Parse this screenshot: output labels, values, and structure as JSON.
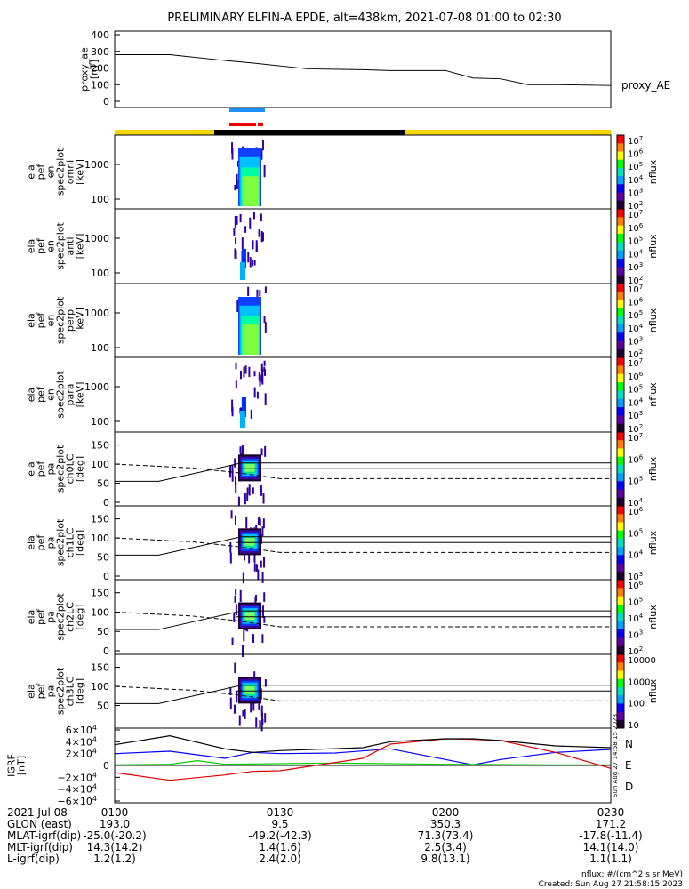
{
  "title": "PRELIMINARY ELFIN-A EPDE, alt=438km, 2021-07-08 01:00 to 02:30",
  "chart_data": [
    {
      "type": "line",
      "ylabel": [
        "proxy_ae",
        "[nT]"
      ],
      "yticks": [
        "400",
        "300",
        "200",
        "100",
        "0"
      ],
      "ylim": [
        0,
        400
      ],
      "series": [
        {
          "name": "proxy_AE",
          "x_min": [
            0,
            10,
            20,
            25,
            35,
            45,
            50,
            60,
            65,
            70,
            75,
            80,
            90
          ],
          "values": [
            280,
            280,
            245,
            230,
            195,
            190,
            185,
            185,
            140,
            135,
            100,
            100,
            95
          ]
        }
      ]
    },
    {
      "type": "heatmap",
      "ylabel": [
        "ela",
        "pef",
        "en",
        "spec2plot",
        "omni",
        "[keV]"
      ],
      "yticks": [
        "1000",
        "100"
      ],
      "zlabel": "nflux",
      "zticks": [
        "10^7",
        "10^6",
        "10^5",
        "10^4",
        "10^3",
        "10^2"
      ]
    },
    {
      "type": "heatmap",
      "ylabel": [
        "ela",
        "pef",
        "en",
        "spec2plot",
        "anti",
        "[keV]"
      ],
      "yticks": [
        "1000",
        "100"
      ],
      "zlabel": "nflux",
      "zticks": [
        "10^7",
        "10^6",
        "10^5",
        "10^4",
        "10^3",
        "10^2"
      ]
    },
    {
      "type": "heatmap",
      "ylabel": [
        "ela",
        "pef",
        "en",
        "spec2plot",
        "perp",
        "[keV]"
      ],
      "yticks": [
        "1000",
        "100"
      ],
      "zlabel": "nflux",
      "zticks": [
        "10^7",
        "10^6",
        "10^5",
        "10^4",
        "10^3",
        "10^2"
      ]
    },
    {
      "type": "heatmap",
      "ylabel": [
        "ela",
        "pef",
        "en",
        "spec2plot",
        "para",
        "[keV]"
      ],
      "yticks": [
        "1000",
        "100"
      ],
      "zlabel": "nflux",
      "zticks": [
        "10^7",
        "10^6",
        "10^5",
        "10^4",
        "10^3",
        "10^2"
      ]
    },
    {
      "type": "heatmap",
      "ylabel": [
        "ela",
        "pef",
        "pa",
        "spec2plot",
        "ch0LC",
        "[deg]"
      ],
      "yticks": [
        "150",
        "100",
        "50",
        "0"
      ],
      "zlabel": "nflux",
      "zticks": [
        "10^7",
        "10^6",
        "10^5",
        "10^4"
      ]
    },
    {
      "type": "heatmap",
      "ylabel": [
        "ela",
        "pef",
        "pa",
        "spec2plot",
        "ch1LC",
        "[deg]"
      ],
      "yticks": [
        "150",
        "100",
        "50",
        "0"
      ],
      "zlabel": "nflux",
      "zticks": [
        "10^6",
        "10^5",
        "10^4",
        "10^3"
      ]
    },
    {
      "type": "heatmap",
      "ylabel": [
        "ela",
        "pef",
        "pa",
        "spec2plot",
        "ch2LC",
        "[deg]"
      ],
      "yticks": [
        "150",
        "100",
        "50",
        "0"
      ],
      "zlabel": "nflux",
      "zticks": [
        "10^6",
        "10^5",
        "10^4",
        "10^3",
        "10^2"
      ]
    },
    {
      "type": "heatmap",
      "ylabel": [
        "ela",
        "pef",
        "pa",
        "spec2plot",
        "ch3LC",
        "[deg]"
      ],
      "yticks": [
        "150",
        "100",
        "50"
      ],
      "zlabel": "nflux",
      "zticks": [
        "10000",
        "1000",
        "100",
        "10"
      ]
    },
    {
      "type": "line",
      "ylabel": [
        "IGRF",
        "[nT]"
      ],
      "yticks": [
        "6×10^4",
        "4×10^4",
        "2×10^4",
        "0",
        "−2×10^4",
        "−4×10^4",
        "−6×10^4"
      ],
      "ylim": [
        -60000,
        60000
      ],
      "legend": [
        "N",
        "E",
        "D"
      ],
      "series": [
        {
          "name": "N",
          "color": "#0000ff",
          "x_min": [
            0,
            10,
            20,
            25,
            30,
            40,
            50,
            60,
            65,
            70,
            80,
            90
          ],
          "values": [
            20000,
            24000,
            12000,
            22000,
            20000,
            21000,
            28000,
            10000,
            1000,
            10000,
            22000,
            27000
          ]
        },
        {
          "name": "E",
          "color": "#00cc00",
          "x_min": [
            0,
            10,
            15,
            20,
            40,
            60,
            80,
            90
          ],
          "values": [
            1000,
            2000,
            8000,
            2000,
            4000,
            2000,
            1000,
            1000
          ]
        },
        {
          "name": "D",
          "color": "#dd0000",
          "x_min": [
            0,
            10,
            20,
            25,
            30,
            45,
            50,
            60,
            65,
            70,
            80,
            90
          ],
          "values": [
            -12000,
            -25000,
            -16000,
            -10000,
            -9000,
            12000,
            36000,
            45000,
            44000,
            42000,
            22000,
            -5000
          ]
        },
        {
          "name": "",
          "color": "#000000",
          "x_min": [
            0,
            10,
            20,
            25,
            30,
            45,
            50,
            60,
            65,
            70,
            80,
            90
          ],
          "values": [
            35000,
            50000,
            28000,
            22000,
            25000,
            30000,
            40000,
            45000,
            45000,
            42000,
            33000,
            30000
          ]
        }
      ]
    }
  ],
  "footer": {
    "rows": [
      {
        "label": "2021 Jul 08",
        "values": [
          "0100",
          "0130",
          "0200",
          "0230"
        ]
      },
      {
        "label": "GLON (east)",
        "values": [
          "193.0",
          "9.5",
          "350.3",
          "171.2"
        ]
      },
      {
        "label": "MLAT-igrf(dip)",
        "values": [
          "-25.0(-20.2)",
          "-49.2(-42.3)",
          "71.3(73.4)",
          "-17.8(-11.4)"
        ]
      },
      {
        "label": "MLT-igrf(dip)",
        "values": [
          "14.3(14.2)",
          "1.4(1.6)",
          "2.5(3.4)",
          "14.1(14.0)"
        ]
      },
      {
        "label": "L-igrf(dip)",
        "values": [
          "1.2(1.2)",
          "2.4(2.0)",
          "9.8(13.1)",
          "1.1(1.1)"
        ]
      }
    ],
    "units": "nflux: #/(cm^2 s sr MeV)",
    "created": "Created: Sun Aug 27 21:58:15 2023",
    "side_created": "Sun Aug 27 14:58:15 2023"
  },
  "colors": {
    "sunlight": "#f2d600",
    "shadow": "#000000",
    "science_blue": "#1e8fff",
    "science_red": "#ee0000"
  }
}
